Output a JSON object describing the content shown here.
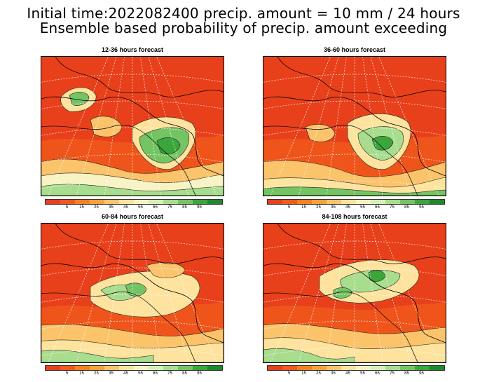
{
  "title": {
    "line1": "Initial time:2022082400 precip. amount = 10 mm / 24 hours",
    "line2": "Ensemble based probability of precip. amount exceeding"
  },
  "panels": [
    {
      "title": "12-36 hours forecast"
    },
    {
      "title": "36-60 hours forecast"
    },
    {
      "title": "60-84 hours forecast"
    },
    {
      "title": "84-108 hours forecast"
    }
  ],
  "colorbar": {
    "colors": [
      "#e8401b",
      "#f05a1c",
      "#f5821f",
      "#f9a23a",
      "#fbc36a",
      "#fde39e",
      "#f7f3c4",
      "#d6efb8",
      "#a8dd8e",
      "#74c464",
      "#3aa63b",
      "#1a8a2a"
    ],
    "labels": [
      "5",
      "15",
      "25",
      "35",
      "45",
      "55",
      "65",
      "75",
      "85",
      "95"
    ]
  }
}
